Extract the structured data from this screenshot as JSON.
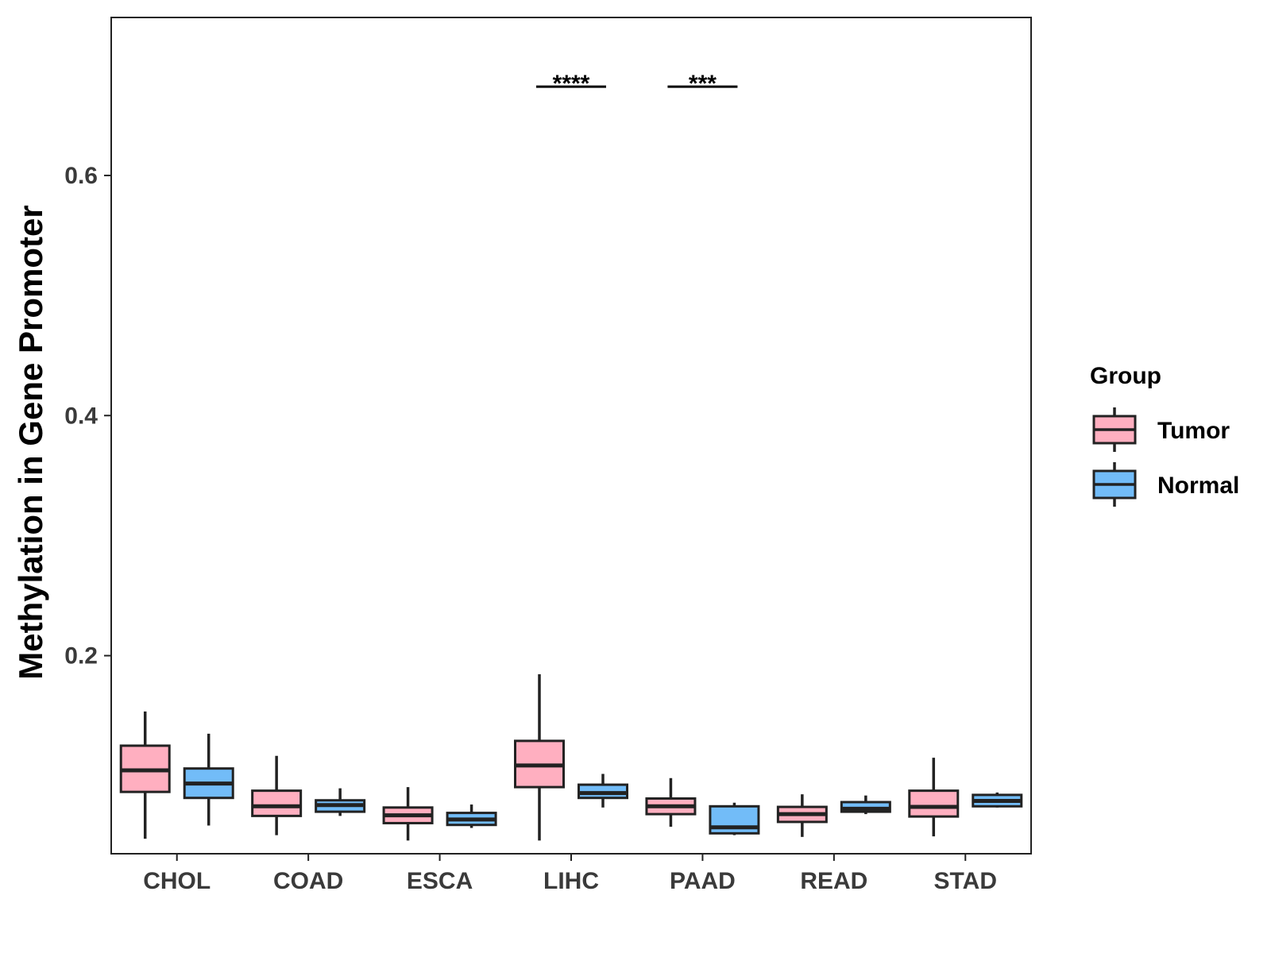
{
  "chart_data": {
    "type": "box",
    "title": "",
    "xlabel": "",
    "ylabel": "Methylation in Gene Promoter",
    "ylim": [
      0.035,
      0.7316
    ],
    "yticks": [
      0.2,
      0.4,
      0.6
    ],
    "ytick_labels": [
      "0.2",
      "0.4",
      "0.6"
    ],
    "categories": [
      "CHOL",
      "COAD",
      "ESCA",
      "LIHC",
      "PAAD",
      "READ",
      "STAD"
    ],
    "legend": {
      "title": "Group",
      "position": "right"
    },
    "series": [
      {
        "name": "Tumor",
        "color": "#ffafc0",
        "boxes": [
          {
            "min": 0.0475,
            "q1": 0.0865,
            "median": 0.1045,
            "q3": 0.125,
            "max": 0.1535
          },
          {
            "min": 0.0505,
            "q1": 0.0665,
            "median": 0.0745,
            "q3": 0.0875,
            "max": 0.1165
          },
          {
            "min": 0.046,
            "q1": 0.0605,
            "median": 0.067,
            "q3": 0.0735,
            "max": 0.0905
          },
          {
            "min": 0.046,
            "q1": 0.0905,
            "median": 0.1085,
            "q3": 0.129,
            "max": 0.1845
          },
          {
            "min": 0.0575,
            "q1": 0.068,
            "median": 0.0745,
            "q3": 0.081,
            "max": 0.098
          },
          {
            "min": 0.049,
            "q1": 0.0615,
            "median": 0.068,
            "q3": 0.074,
            "max": 0.0845
          },
          {
            "min": 0.0495,
            "q1": 0.066,
            "median": 0.074,
            "q3": 0.0875,
            "max": 0.115
          }
        ]
      },
      {
        "name": "Normal",
        "color": "#72bcf8",
        "boxes": [
          {
            "min": 0.0585,
            "q1": 0.0815,
            "median": 0.0935,
            "q3": 0.106,
            "max": 0.135
          },
          {
            "min": 0.0665,
            "q1": 0.07,
            "median": 0.0755,
            "q3": 0.0795,
            "max": 0.0895
          },
          {
            "min": 0.0565,
            "q1": 0.059,
            "median": 0.0635,
            "q3": 0.069,
            "max": 0.076
          },
          {
            "min": 0.0735,
            "q1": 0.0815,
            "median": 0.0855,
            "q3": 0.0925,
            "max": 0.1015
          },
          {
            "min": 0.0505,
            "q1": 0.052,
            "median": 0.057,
            "q3": 0.0745,
            "max": 0.0775
          },
          {
            "min": 0.068,
            "q1": 0.07,
            "median": 0.0725,
            "q3": 0.078,
            "max": 0.0835
          },
          {
            "min": 0.0735,
            "q1": 0.0745,
            "median": 0.079,
            "q3": 0.084,
            "max": 0.086
          }
        ]
      }
    ],
    "annotations": [
      {
        "category": "LIHC",
        "text": "****",
        "y": 0.674
      },
      {
        "category": "PAAD",
        "text": "***",
        "y": 0.674
      }
    ]
  }
}
